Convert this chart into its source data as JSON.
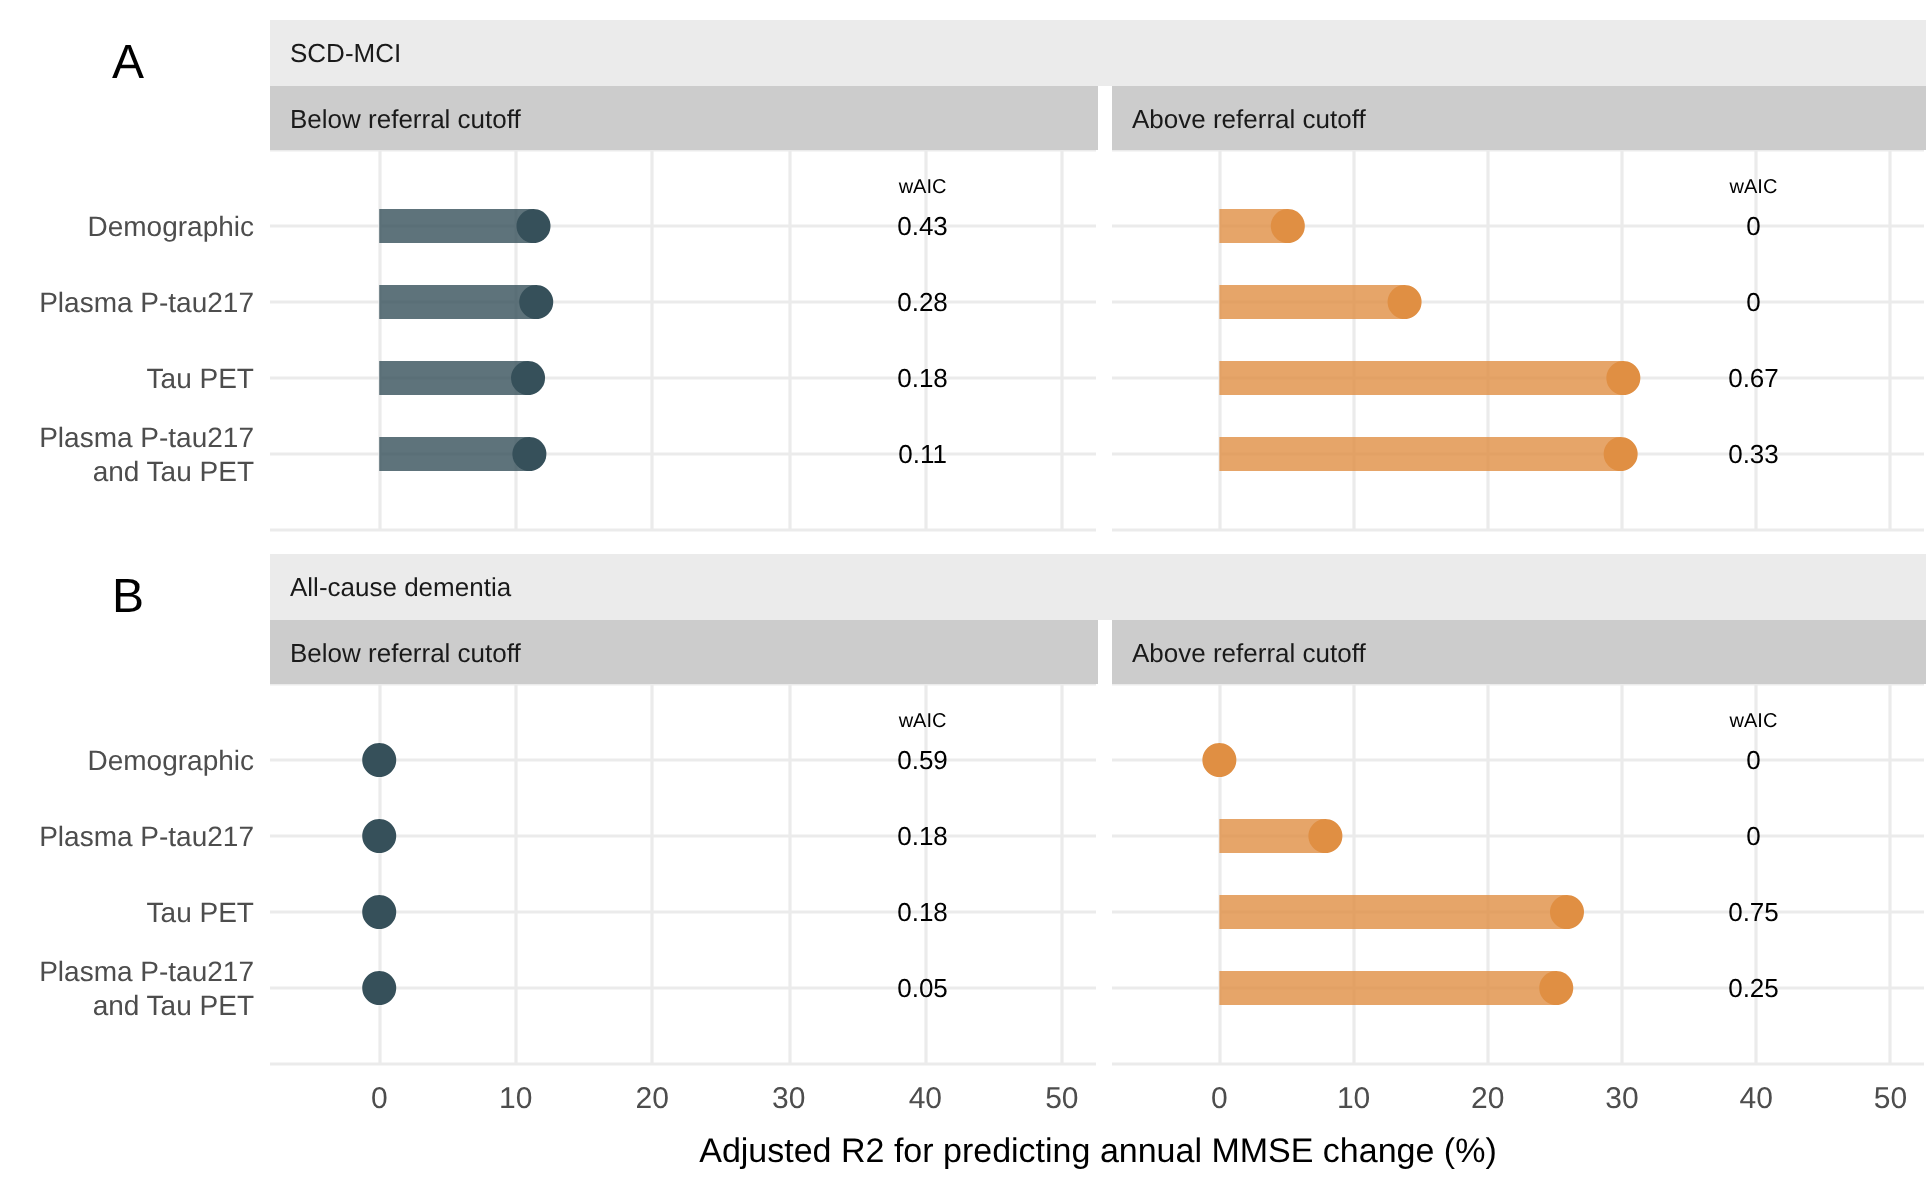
{
  "chart_data": [
    {
      "type": "lollipop",
      "orientation": "horizontal",
      "title": "SCD-MCI",
      "subtitle": "Below referral cutoff",
      "categories": [
        "Demographic",
        "Plasma P-tau217",
        "Tau PET",
        "Plasma P-tau217\nand Tau PET"
      ],
      "series": [
        {
          "color": "#36505a",
          "values": [
            11.3,
            11.5,
            10.9,
            11.0
          ]
        }
      ],
      "xlim": [
        -8,
        52.5
      ],
      "xticks": [
        0,
        10,
        20,
        30,
        40,
        50
      ],
      "grid": true,
      "marker": "circle",
      "tick_labels": "y",
      "annotations": [
        "A",
        "wAIC",
        "0.43",
        "0.28",
        "0.18",
        "0.11"
      ]
    },
    {
      "type": "lollipop",
      "orientation": "horizontal",
      "subtitle": "Above referral cutoff",
      "categories": [
        null,
        null,
        null,
        null
      ],
      "series": [
        {
          "color": "#e08f43",
          "values": [
            5.1,
            13.8,
            30.1,
            29.9
          ]
        }
      ],
      "xlim": [
        -8,
        52.5
      ],
      "xticks": [
        0,
        10,
        20,
        30,
        40,
        50
      ],
      "grid": true,
      "marker": "circle",
      "tick_labels": false,
      "annotations": [
        "wAIC",
        "0",
        "0",
        "0.67",
        "0.33"
      ]
    },
    {
      "type": "lollipop",
      "orientation": "horizontal",
      "title": "All-cause dementia",
      "subtitle": "Below referral cutoff",
      "xlabel": "Adjusted R2 for predicting annual MMSE change (%)",
      "categories": [
        "Demographic",
        "Plasma P-tau217",
        "Tau PET",
        "Plasma P-tau217\nand Tau PET"
      ],
      "series": [
        {
          "color": "#36505a",
          "values": [
            0,
            0,
            0,
            0
          ]
        }
      ],
      "xlim": [
        -8,
        52.5
      ],
      "xticks": [
        0,
        10,
        20,
        30,
        40,
        50
      ],
      "grid": true,
      "marker": "circle",
      "annotations": [
        "B",
        "wAIC",
        "0.59",
        "0.18",
        "0.18",
        "0.05"
      ]
    },
    {
      "type": "lollipop",
      "orientation": "horizontal",
      "subtitle": "Above referral cutoff",
      "categories": [
        null,
        null,
        null,
        null
      ],
      "series": [
        {
          "color": "#e08f43",
          "values": [
            0,
            7.9,
            25.9,
            25.1
          ]
        }
      ],
      "xlim": [
        -8,
        52.5
      ],
      "xticks": [
        0,
        10,
        20,
        30,
        40,
        50
      ],
      "grid": true,
      "marker": "circle",
      "tick_labels": "x",
      "annotations": [
        "wAIC",
        "0",
        "0",
        "0.75",
        "0.25"
      ]
    }
  ]
}
